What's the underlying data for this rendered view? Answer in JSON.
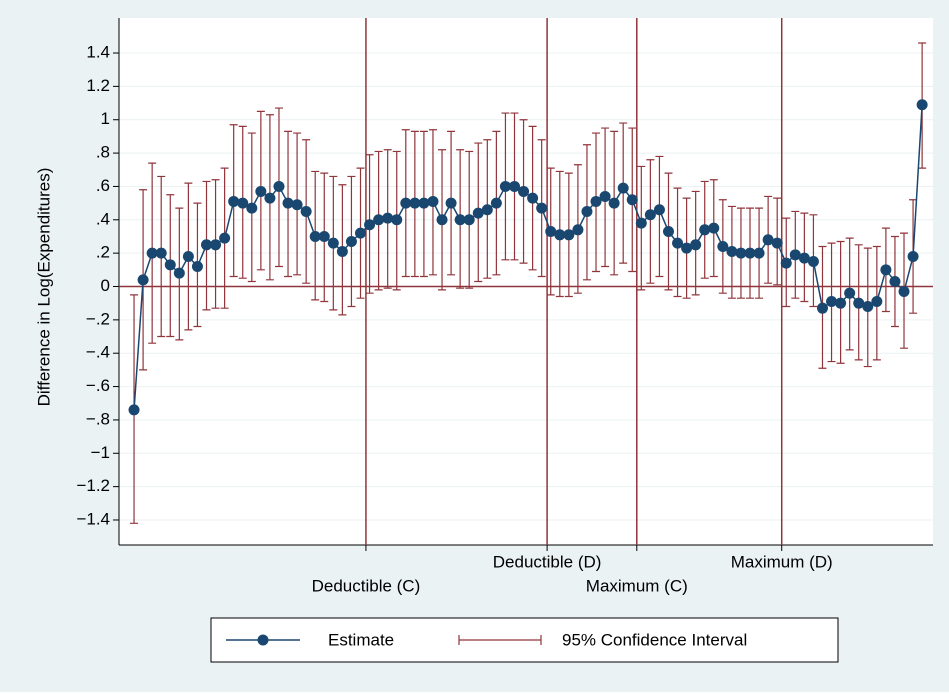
{
  "chart_data": {
    "type": "line",
    "y_label": "Difference in Log(Expenditures)",
    "x": [
      1,
      2,
      3,
      4,
      5,
      6,
      7,
      8,
      9,
      10,
      11,
      12,
      13,
      14,
      15,
      16,
      17,
      18,
      19,
      20,
      21,
      22,
      23,
      24,
      25,
      26,
      27,
      28,
      29,
      30,
      31,
      32,
      33,
      34,
      35,
      36,
      37,
      38,
      39,
      40,
      41,
      42,
      43,
      44,
      45,
      46,
      47,
      48,
      49,
      50,
      51,
      52,
      53,
      54,
      55,
      56,
      57,
      58,
      59,
      60,
      61,
      62,
      63,
      64,
      65,
      66,
      67,
      68,
      69,
      70,
      71,
      72,
      73,
      74,
      75,
      76,
      77,
      78,
      79,
      80,
      81,
      82,
      83,
      84,
      85,
      86,
      87,
      88
    ],
    "series": [
      {
        "name": "Estimate",
        "color": "#1a476f",
        "values": [
          -0.74,
          0.04,
          0.2,
          0.2,
          0.13,
          0.08,
          0.18,
          0.12,
          0.25,
          0.25,
          0.29,
          0.51,
          0.5,
          0.47,
          0.57,
          0.53,
          0.6,
          0.5,
          0.49,
          0.45,
          0.3,
          0.3,
          0.26,
          0.21,
          0.27,
          0.32,
          0.37,
          0.4,
          0.41,
          0.4,
          0.5,
          0.5,
          0.5,
          0.51,
          0.4,
          0.5,
          0.4,
          0.4,
          0.44,
          0.46,
          0.5,
          0.6,
          0.6,
          0.57,
          0.53,
          0.47,
          0.33,
          0.31,
          0.31,
          0.34,
          0.45,
          0.51,
          0.54,
          0.5,
          0.59,
          0.52,
          0.38,
          0.43,
          0.46,
          0.33,
          0.26,
          0.23,
          0.25,
          0.34,
          0.35,
          0.24,
          0.21,
          0.2,
          0.2,
          0.2,
          0.28,
          0.26,
          0.14,
          0.19,
          0.17,
          0.15,
          -0.13,
          -0.09,
          -0.1,
          -0.04,
          -0.1,
          -0.12,
          -0.09,
          0.1,
          0.03,
          -0.03,
          0.18,
          1.09
        ]
      }
    ],
    "interval": {
      "name": "95% Confidence Interval",
      "color": "#90353b",
      "lower": [
        -1.42,
        -0.5,
        -0.34,
        -0.3,
        -0.3,
        -0.32,
        -0.26,
        -0.24,
        -0.14,
        -0.13,
        -0.13,
        0.06,
        0.05,
        0.03,
        0.1,
        0.04,
        0.12,
        0.06,
        0.07,
        0.02,
        -0.08,
        -0.09,
        -0.14,
        -0.17,
        -0.12,
        -0.07,
        -0.04,
        -0.02,
        -0.01,
        -0.02,
        0.06,
        0.06,
        0.06,
        0.07,
        -0.02,
        0.07,
        -0.01,
        -0.01,
        0.03,
        0.05,
        0.07,
        0.16,
        0.16,
        0.14,
        0.1,
        0.06,
        -0.05,
        -0.06,
        -0.06,
        -0.04,
        0.04,
        0.09,
        0.12,
        0.07,
        0.14,
        0.09,
        -0.02,
        0.02,
        0.06,
        -0.02,
        -0.06,
        -0.07,
        -0.05,
        0.05,
        0.06,
        -0.04,
        -0.07,
        -0.07,
        -0.07,
        -0.07,
        0.02,
        0.01,
        -0.12,
        -0.07,
        -0.09,
        -0.12,
        -0.49,
        -0.45,
        -0.46,
        -0.38,
        -0.44,
        -0.48,
        -0.44,
        -0.15,
        -0.24,
        -0.37,
        -0.16,
        0.71
      ],
      "upper": [
        -0.05,
        0.58,
        0.74,
        0.66,
        0.55,
        0.47,
        0.62,
        0.5,
        0.63,
        0.64,
        0.71,
        0.97,
        0.96,
        0.92,
        1.05,
        1.03,
        1.07,
        0.93,
        0.92,
        0.88,
        0.69,
        0.68,
        0.66,
        0.61,
        0.66,
        0.71,
        0.79,
        0.81,
        0.82,
        0.81,
        0.94,
        0.93,
        0.93,
        0.94,
        0.82,
        0.93,
        0.82,
        0.81,
        0.86,
        0.88,
        0.93,
        1.04,
        1.04,
        1.0,
        0.96,
        0.88,
        0.71,
        0.69,
        0.68,
        0.73,
        0.85,
        0.92,
        0.95,
        0.93,
        0.98,
        0.95,
        0.72,
        0.76,
        0.78,
        0.68,
        0.59,
        0.53,
        0.57,
        0.63,
        0.64,
        0.52,
        0.48,
        0.47,
        0.47,
        0.47,
        0.54,
        0.53,
        0.41,
        0.45,
        0.44,
        0.43,
        0.24,
        0.26,
        0.27,
        0.29,
        0.25,
        0.23,
        0.24,
        0.35,
        0.3,
        0.32,
        0.52,
        1.46
      ]
    },
    "xlim": [
      -0.66,
      89.2
    ],
    "xticks": [
      {
        "value": 26.6,
        "label": "Deductible (C)"
      },
      {
        "value": 46.6,
        "label": "Deductible (D)"
      },
      {
        "value": 56.5,
        "label": "Maximum (C)"
      },
      {
        "value": 72.5,
        "label": "Maximum (D)"
      }
    ],
    "ylim": [
      -1.55,
      1.61
    ],
    "yticks": [
      {
        "value": 1.4,
        "label": "1.4"
      },
      {
        "value": 1.2,
        "label": "1.2"
      },
      1,
      {
        "value": 0.8,
        "label": ".8"
      },
      {
        "value": 0.6,
        "label": ".6"
      },
      {
        "value": 0.4,
        "label": ".4"
      },
      {
        "value": 0.2,
        "label": ".2"
      },
      0,
      {
        "value": -0.2,
        "label": "−.2"
      },
      {
        "value": -0.4,
        "label": "−.4"
      },
      {
        "value": -0.6,
        "label": "−.6"
      },
      {
        "value": -0.8,
        "label": "−.8"
      },
      {
        "value": -1,
        "label": "−1"
      },
      {
        "value": -1.2,
        "label": "−1.2"
      },
      {
        "value": -1.4,
        "label": "−1.4"
      }
    ],
    "yline": 0,
    "reference_color": "#90353b",
    "grid": true
  }
}
